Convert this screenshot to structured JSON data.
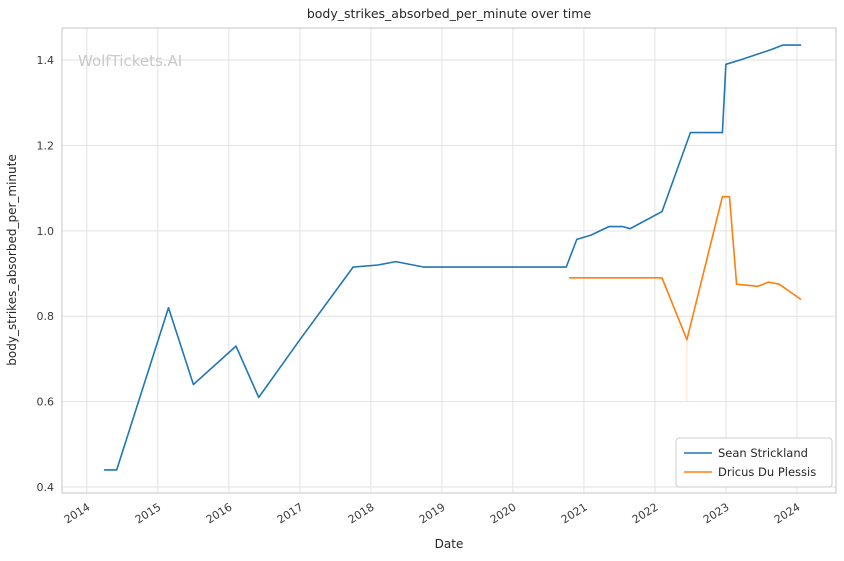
{
  "watermark": "WolfTickets.AI",
  "chart_data": {
    "type": "line",
    "title": "body_strikes_absorbed_per_minute over time",
    "xlabel": "Date",
    "ylabel": "body_strikes_absorbed_per_minute",
    "xlim": [
      2013.65,
      2024.55
    ],
    "ylim": [
      0.386,
      1.475
    ],
    "grid": true,
    "grid_color": "#e2e2e2",
    "spine_color": "#cfcfcf",
    "legend_position": "lower right",
    "xticks": [
      {
        "v": 2014,
        "label": "2014"
      },
      {
        "v": 2015,
        "label": "2015"
      },
      {
        "v": 2016,
        "label": "2016"
      },
      {
        "v": 2017,
        "label": "2017"
      },
      {
        "v": 2018,
        "label": "2018"
      },
      {
        "v": 2019,
        "label": "2019"
      },
      {
        "v": 2020,
        "label": "2020"
      },
      {
        "v": 2021,
        "label": "2021"
      },
      {
        "v": 2022,
        "label": "2022"
      },
      {
        "v": 2023,
        "label": "2023"
      },
      {
        "v": 2024,
        "label": "2024"
      }
    ],
    "yticks": [
      {
        "v": 0.4,
        "label": "0.4"
      },
      {
        "v": 0.6,
        "label": "0.6"
      },
      {
        "v": 0.8,
        "label": "0.8"
      },
      {
        "v": 1.0,
        "label": "1.0"
      },
      {
        "v": 1.2,
        "label": "1.2"
      },
      {
        "v": 1.4,
        "label": "1.4"
      }
    ],
    "series": [
      {
        "name": "Sean Strickland",
        "color": "#1f77b4",
        "points": [
          [
            2014.25,
            0.44
          ],
          [
            2014.42,
            0.44
          ],
          [
            2015.15,
            0.82
          ],
          [
            2015.5,
            0.64
          ],
          [
            2016.1,
            0.73
          ],
          [
            2016.42,
            0.61
          ],
          [
            2017.0,
            0.745
          ],
          [
            2017.75,
            0.915
          ],
          [
            2018.1,
            0.92
          ],
          [
            2018.35,
            0.928
          ],
          [
            2018.75,
            0.915
          ],
          [
            2020.75,
            0.915
          ],
          [
            2020.9,
            0.98
          ],
          [
            2021.1,
            0.99
          ],
          [
            2021.35,
            1.01
          ],
          [
            2021.55,
            1.01
          ],
          [
            2021.65,
            1.005
          ],
          [
            2022.1,
            1.045
          ],
          [
            2022.5,
            1.23
          ],
          [
            2022.95,
            1.23
          ],
          [
            2023.0,
            1.39
          ],
          [
            2023.2,
            1.4
          ],
          [
            2023.65,
            1.425
          ],
          [
            2023.8,
            1.435
          ],
          [
            2024.05,
            1.435
          ]
        ]
      },
      {
        "name": "Dricus Du Plessis",
        "color": "#ff7f0e",
        "points": [
          [
            2020.8,
            0.89
          ],
          [
            2022.1,
            0.89
          ],
          [
            2022.45,
            0.745
          ],
          [
            2022.95,
            1.08
          ],
          [
            2023.05,
            1.08
          ],
          [
            2023.15,
            0.875
          ],
          [
            2023.45,
            0.87
          ],
          [
            2023.6,
            0.88
          ],
          [
            2023.75,
            0.875
          ],
          [
            2024.05,
            0.84
          ]
        ]
      }
    ],
    "vertical_markers": [
      {
        "x": 2022.45,
        "y1": 0.6,
        "y2": 0.745,
        "color": "#ffb380"
      }
    ]
  }
}
